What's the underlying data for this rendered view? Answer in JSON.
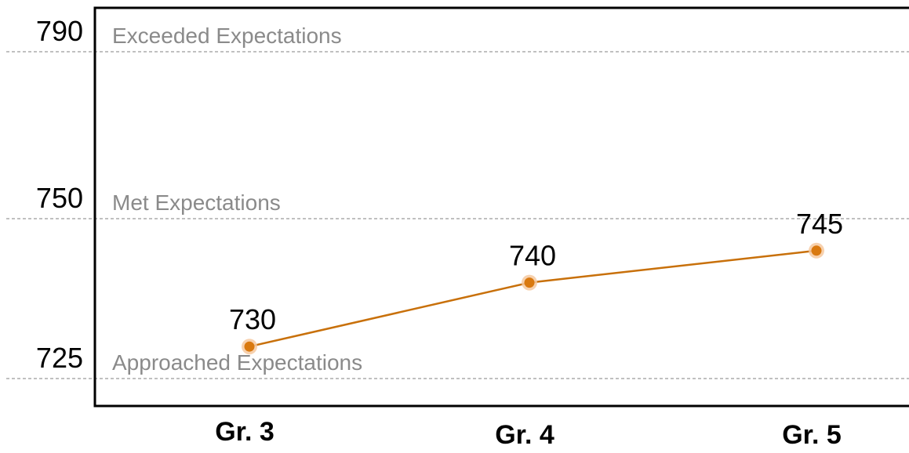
{
  "chart_data": {
    "type": "line",
    "categories": [
      "Gr. 3",
      "Gr. 4",
      "Gr. 5"
    ],
    "series": [
      {
        "values": [
          730,
          740,
          745
        ]
      }
    ],
    "data_labels": [
      "730",
      "740",
      "745"
    ],
    "y_ticks": [
      {
        "value": 790,
        "label": "790"
      },
      {
        "value": 750,
        "label": "750"
      },
      {
        "value": 725,
        "label": "725"
      }
    ],
    "reference_bands": [
      {
        "value": 790,
        "label": "Exceeded Expectations"
      },
      {
        "value": 750,
        "label": "Met Expectations"
      },
      {
        "value": 725,
        "label": "Approached Expectations"
      }
    ],
    "title": "",
    "xlabel": "",
    "ylabel": "",
    "grid": false,
    "legend": "none",
    "colors": {
      "line": "#c8700a",
      "marker": "#d9790f",
      "marker_halo": "#f6c9a0",
      "reference_line": "#9a9a9a",
      "band_label": "#8a8a8a",
      "axis": "#000000"
    }
  }
}
